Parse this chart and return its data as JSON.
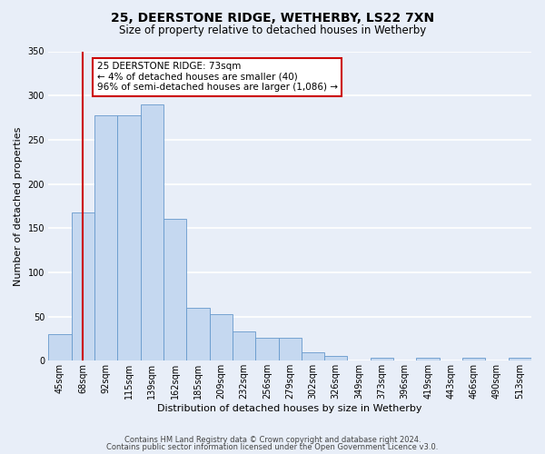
{
  "title": "25, DEERSTONE RIDGE, WETHERBY, LS22 7XN",
  "subtitle": "Size of property relative to detached houses in Wetherby",
  "xlabel": "Distribution of detached houses by size in Wetherby",
  "ylabel": "Number of detached properties",
  "bar_labels": [
    "45sqm",
    "68sqm",
    "92sqm",
    "115sqm",
    "139sqm",
    "162sqm",
    "185sqm",
    "209sqm",
    "232sqm",
    "256sqm",
    "279sqm",
    "302sqm",
    "326sqm",
    "349sqm",
    "373sqm",
    "396sqm",
    "419sqm",
    "443sqm",
    "466sqm",
    "490sqm",
    "513sqm"
  ],
  "bar_values": [
    30,
    168,
    278,
    278,
    290,
    161,
    60,
    53,
    33,
    26,
    26,
    10,
    5,
    0,
    3,
    0,
    3,
    0,
    3,
    0,
    3
  ],
  "bar_color": "#c5d8f0",
  "bar_edge_color": "#6699cc",
  "vline_x": 1.0,
  "vline_color": "#cc0000",
  "annotation_text": "25 DEERSTONE RIDGE: 73sqm\n← 4% of detached houses are smaller (40)\n96% of semi-detached houses are larger (1,086) →",
  "annotation_box_color": "#ffffff",
  "annotation_box_edge_color": "#cc0000",
  "ylim": [
    0,
    350
  ],
  "yticks": [
    0,
    50,
    100,
    150,
    200,
    250,
    300,
    350
  ],
  "footer_line1": "Contains HM Land Registry data © Crown copyright and database right 2024.",
  "footer_line2": "Contains public sector information licensed under the Open Government Licence v3.0.",
  "bg_color": "#e8eef8",
  "plot_bg_color": "#e8eef8",
  "title_fontsize": 10,
  "subtitle_fontsize": 8.5,
  "ylabel_fontsize": 8,
  "xlabel_fontsize": 8,
  "tick_fontsize": 7,
  "footer_fontsize": 6
}
